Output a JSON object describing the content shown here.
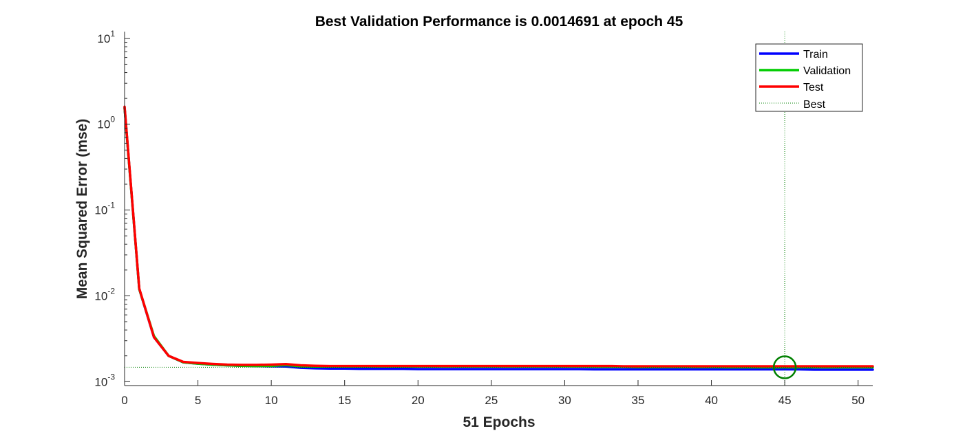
{
  "chart_data": {
    "type": "line",
    "title": "Best Validation Performance is 0.0014691 at epoch 45",
    "xlabel": "51 Epochs",
    "ylabel": "Mean Squared Error  (mse)",
    "xlim": [
      0,
      51
    ],
    "ylim": [
      0.0009,
      12
    ],
    "yscale": "log",
    "grid": false,
    "legend_position": "top-right",
    "x_ticks": [
      {
        "value": 0,
        "label": "0"
      },
      {
        "value": 5,
        "label": "5"
      },
      {
        "value": 10,
        "label": "10"
      },
      {
        "value": 15,
        "label": "15"
      },
      {
        "value": 20,
        "label": "20"
      },
      {
        "value": 25,
        "label": "25"
      },
      {
        "value": 30,
        "label": "30"
      },
      {
        "value": 35,
        "label": "35"
      },
      {
        "value": 40,
        "label": "40"
      },
      {
        "value": 45,
        "label": "45"
      },
      {
        "value": 50,
        "label": "50"
      }
    ],
    "y_ticks": [
      {
        "value": 0.001,
        "base": "10",
        "exp": "-3"
      },
      {
        "value": 0.01,
        "base": "10",
        "exp": "-2"
      },
      {
        "value": 0.1,
        "base": "10",
        "exp": "-1"
      },
      {
        "value": 1,
        "base": "10",
        "exp": "0"
      },
      {
        "value": 10,
        "base": "10",
        "exp": "1"
      }
    ],
    "series": [
      {
        "name": "Train",
        "color": "#0000ff",
        "x": [
          0,
          1,
          2,
          3,
          4,
          5,
          6,
          7,
          8,
          9,
          10,
          11,
          12,
          13,
          14,
          15,
          16,
          17,
          18,
          19,
          20,
          21,
          22,
          23,
          24,
          25,
          26,
          27,
          28,
          29,
          30,
          31,
          32,
          33,
          34,
          35,
          36,
          37,
          38,
          39,
          40,
          41,
          42,
          43,
          44,
          45,
          46,
          47,
          48,
          49,
          50,
          51
        ],
        "y": [
          1.55,
          0.012,
          0.0033,
          0.002,
          0.00168,
          0.00162,
          0.00158,
          0.00155,
          0.00153,
          0.00152,
          0.00151,
          0.0015,
          0.00145,
          0.00143,
          0.00142,
          0.00142,
          0.00141,
          0.00141,
          0.00141,
          0.00141,
          0.0014,
          0.0014,
          0.0014,
          0.0014,
          0.0014,
          0.0014,
          0.0014,
          0.0014,
          0.0014,
          0.0014,
          0.0014,
          0.0014,
          0.00139,
          0.00139,
          0.00139,
          0.00139,
          0.00139,
          0.00139,
          0.00139,
          0.00139,
          0.00139,
          0.00139,
          0.00139,
          0.00139,
          0.00139,
          0.00139,
          0.00139,
          0.00138,
          0.00138,
          0.00138,
          0.00138,
          0.00138
        ]
      },
      {
        "name": "Validation",
        "color": "#00cc00",
        "x": [
          0,
          1,
          2,
          3,
          4,
          5,
          6,
          7,
          8,
          9,
          10,
          11,
          12,
          13,
          14,
          15,
          16,
          17,
          18,
          19,
          20,
          21,
          22,
          23,
          24,
          25,
          26,
          27,
          28,
          29,
          30,
          31,
          32,
          33,
          34,
          35,
          36,
          37,
          38,
          39,
          40,
          41,
          42,
          43,
          44,
          45,
          46,
          47,
          48,
          49,
          50,
          51
        ],
        "y": [
          1.55,
          0.012,
          0.0034,
          0.002,
          0.00168,
          0.00162,
          0.00158,
          0.00155,
          0.00153,
          0.00152,
          0.00153,
          0.00156,
          0.00151,
          0.0015,
          0.0015,
          0.0015,
          0.0015,
          0.0015,
          0.0015,
          0.0015,
          0.0015,
          0.0015,
          0.0015,
          0.0015,
          0.0015,
          0.0015,
          0.0015,
          0.0015,
          0.0015,
          0.0015,
          0.0015,
          0.0015,
          0.00149,
          0.00149,
          0.00149,
          0.00148,
          0.00148,
          0.00148,
          0.00148,
          0.00148,
          0.00148,
          0.00147,
          0.00147,
          0.00147,
          0.00147,
          0.0014691,
          0.00147,
          0.00147,
          0.00147,
          0.00147,
          0.00147,
          0.00147
        ]
      },
      {
        "name": "Test",
        "color": "#ff0000",
        "x": [
          0,
          1,
          2,
          3,
          4,
          5,
          6,
          7,
          8,
          9,
          10,
          11,
          12,
          13,
          14,
          15,
          16,
          17,
          18,
          19,
          20,
          21,
          22,
          23,
          24,
          25,
          26,
          27,
          28,
          29,
          30,
          31,
          32,
          33,
          34,
          35,
          36,
          37,
          38,
          39,
          40,
          41,
          42,
          43,
          44,
          45,
          46,
          47,
          48,
          49,
          50,
          51
        ],
        "y": [
          1.6,
          0.0122,
          0.0033,
          0.002,
          0.0017,
          0.00165,
          0.00161,
          0.00158,
          0.00157,
          0.00157,
          0.00158,
          0.0016,
          0.00155,
          0.00153,
          0.00152,
          0.00152,
          0.00152,
          0.00152,
          0.00152,
          0.00152,
          0.00152,
          0.00152,
          0.00152,
          0.00152,
          0.00152,
          0.00152,
          0.00152,
          0.00152,
          0.00152,
          0.00152,
          0.00152,
          0.00152,
          0.00152,
          0.00152,
          0.00151,
          0.00151,
          0.00151,
          0.00151,
          0.00151,
          0.00151,
          0.00151,
          0.00151,
          0.00151,
          0.00151,
          0.00151,
          0.00151,
          0.00151,
          0.00151,
          0.00151,
          0.00151,
          0.00151,
          0.00151
        ]
      }
    ],
    "best": {
      "name": "Best",
      "epoch": 45,
      "value": 0.0014691,
      "color": "#008000"
    }
  }
}
